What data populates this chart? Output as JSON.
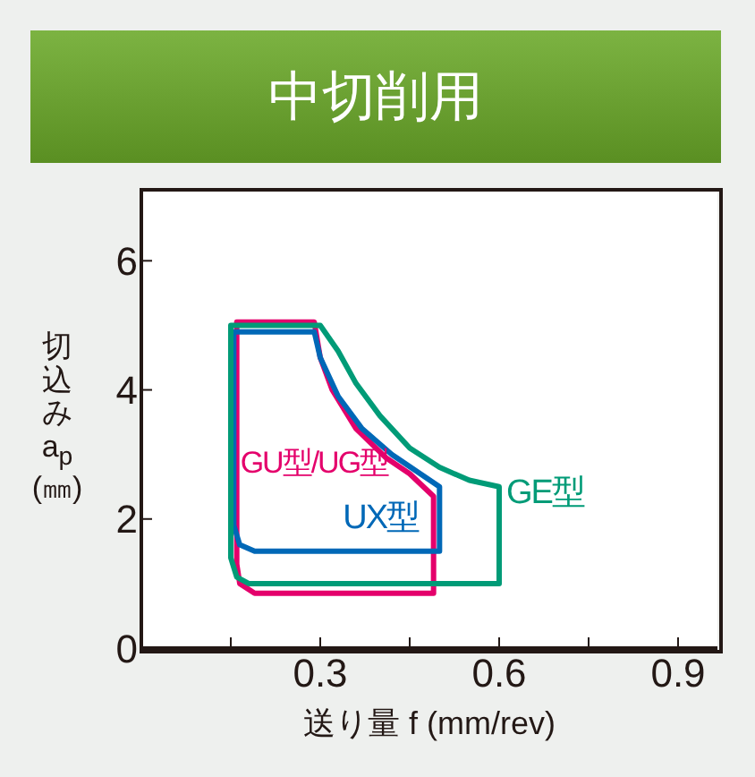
{
  "chart_data": {
    "type": "line",
    "title": "中切削用",
    "xlabel": "送り量 f (mm/rev)",
    "ylabel": "切込み a$_{p}$ (㎜)",
    "xlim": [
      0,
      0.966
    ],
    "ylim": [
      0,
      7.1
    ],
    "xticks": [
      {
        "value": 0.15,
        "label": null
      },
      0.3,
      {
        "value": 0.45,
        "label": null
      },
      0.6,
      {
        "value": 0.75,
        "label": null
      },
      0.9
    ],
    "yticks": [
      0,
      2,
      4,
      6
    ],
    "grid": false,
    "legend": false,
    "marker": "none",
    "line_style": "solid",
    "series": [
      {
        "name": "GU型/UG型",
        "color": "#e4006b",
        "x": [
          0.16,
          0.16,
          0.29,
          0.3,
          0.32,
          0.36,
          0.41,
          0.45,
          0.49,
          0.49,
          null,
          0.16,
          0.165,
          0.19,
          0.49
        ],
        "values": [
          1.3,
          5.05,
          5.05,
          4.5,
          4.0,
          3.4,
          2.95,
          2.7,
          2.35,
          0.85,
          null,
          1.3,
          1.0,
          0.85,
          0.85
        ]
      },
      {
        "name": "UX型",
        "color": "#0068b7",
        "x": [
          0.155,
          0.155,
          0.29,
          0.3,
          0.33,
          0.37,
          0.42,
          0.46,
          0.5,
          0.5,
          null,
          0.155,
          0.165,
          0.19,
          0.5
        ],
        "values": [
          1.9,
          4.9,
          4.9,
          4.5,
          3.9,
          3.4,
          3.0,
          2.75,
          2.5,
          1.5,
          null,
          1.9,
          1.6,
          1.5,
          1.5
        ]
      },
      {
        "name": "GE型",
        "color": "#009b77",
        "x": [
          0.15,
          0.15,
          0.3,
          0.33,
          0.36,
          0.4,
          0.45,
          0.5,
          0.55,
          0.6,
          0.6,
          null,
          0.15,
          0.16,
          0.18,
          0.6
        ],
        "values": [
          1.4,
          5.0,
          5.0,
          4.6,
          4.1,
          3.6,
          3.1,
          2.8,
          2.6,
          2.5,
          1.0,
          null,
          1.4,
          1.1,
          1.0,
          1.0
        ]
      }
    ]
  }
}
